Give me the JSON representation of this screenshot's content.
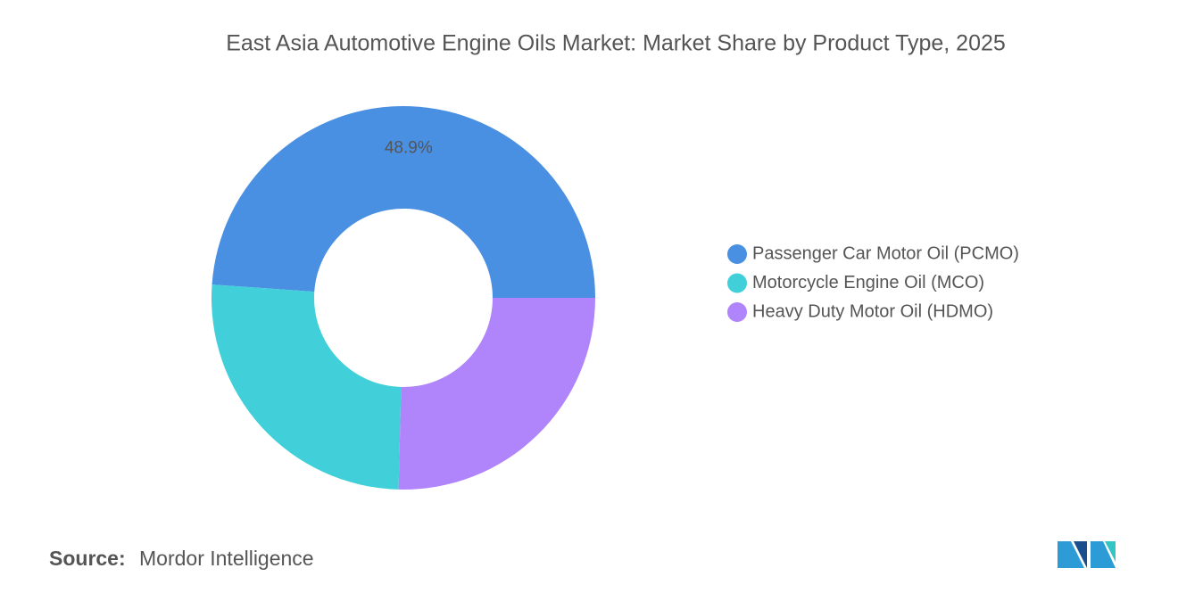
{
  "chart_data": {
    "type": "donut",
    "title": "East Asia Automotive Engine Oils Market: Market Share by Product Type, 2025",
    "categories": [
      "Passenger Car Motor Oil (PCMO)",
      "Motorcycle Engine Oil (MCO)",
      "Heavy Duty Motor Oil (HDMO)"
    ],
    "values": [
      48.9,
      25.7,
      25.4
    ],
    "value_labels": [
      "48.9%",
      null,
      null
    ],
    "colors": [
      "#4a90e2",
      "#41d0d9",
      "#b084fa"
    ],
    "legend": "right",
    "source_label": "Source:",
    "source": "Mordor Intelligence"
  }
}
